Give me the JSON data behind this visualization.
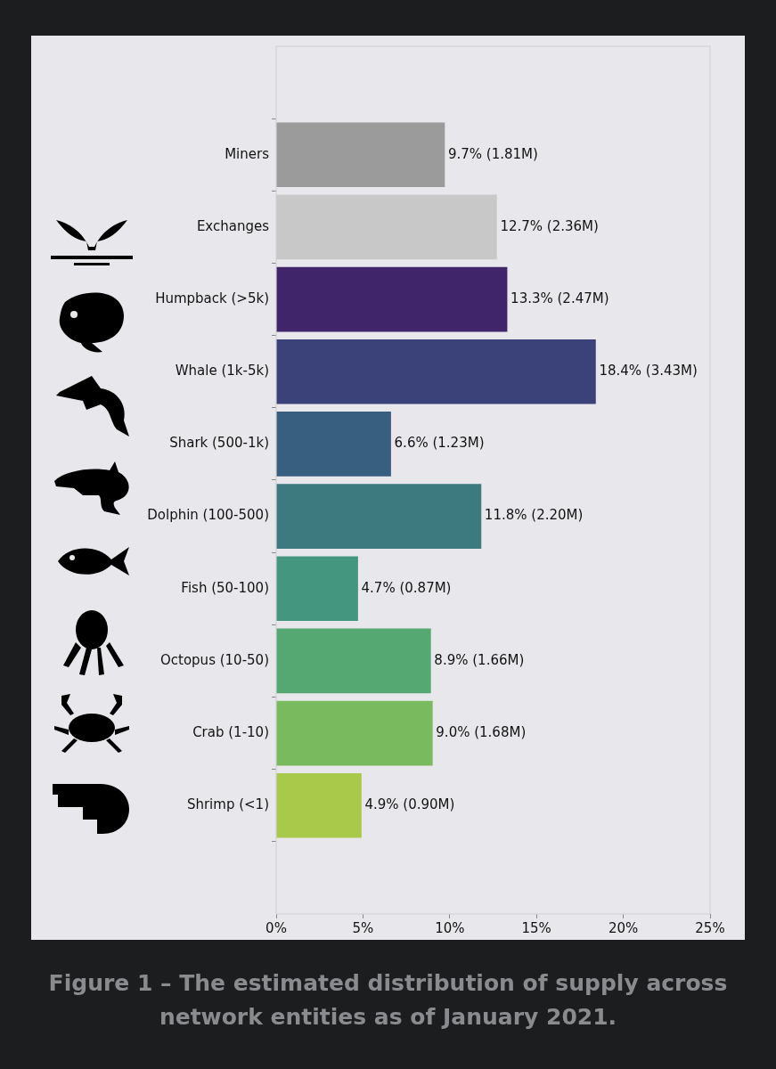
{
  "chart_data": {
    "type": "bar",
    "orientation": "horizontal",
    "categories": [
      "Miners",
      "Exchanges",
      "Humpback (>5k)",
      "Whale (1k-5k)",
      "Shark (500-1k)",
      "Dolphin (100-500)",
      "Fish (50-100)",
      "Octopus (10-50)",
      "Crab (1-10)",
      "Shrimp (<1)"
    ],
    "values": [
      9.7,
      12.7,
      13.3,
      18.4,
      6.6,
      11.8,
      4.7,
      8.9,
      9.0,
      4.9
    ],
    "colors": [
      "#9b9b9b",
      "#c8c8c8",
      "#41256b",
      "#3b4179",
      "#395f80",
      "#3d7a80",
      "#44967f",
      "#56a872",
      "#7aba5e",
      "#a9c94a"
    ],
    "value_labels": [
      "9.7% (1.81M)",
      "12.7% (2.36M)",
      "13.3% (2.47M)",
      "18.4% (3.43M)",
      "6.6% (1.23M)",
      "11.8% (2.20M)",
      "4.7% (0.87M)",
      "8.9% (1.66M)",
      "9.0% (1.68M)",
      "4.9% (0.90M)"
    ],
    "xlim": [
      0,
      25
    ],
    "xticks": [
      {
        "value": 0,
        "label": "0%"
      },
      {
        "value": 5,
        "label": "5%"
      },
      {
        "value": 10,
        "label": "10%"
      },
      {
        "value": 15,
        "label": "15%"
      },
      {
        "value": 20,
        "label": "20%"
      },
      {
        "value": 25,
        "label": "25%"
      }
    ],
    "grid": false,
    "annotations": [
      "Figure 1 – The estimated distribution of supply across network entities as of January 2021."
    ]
  }
}
